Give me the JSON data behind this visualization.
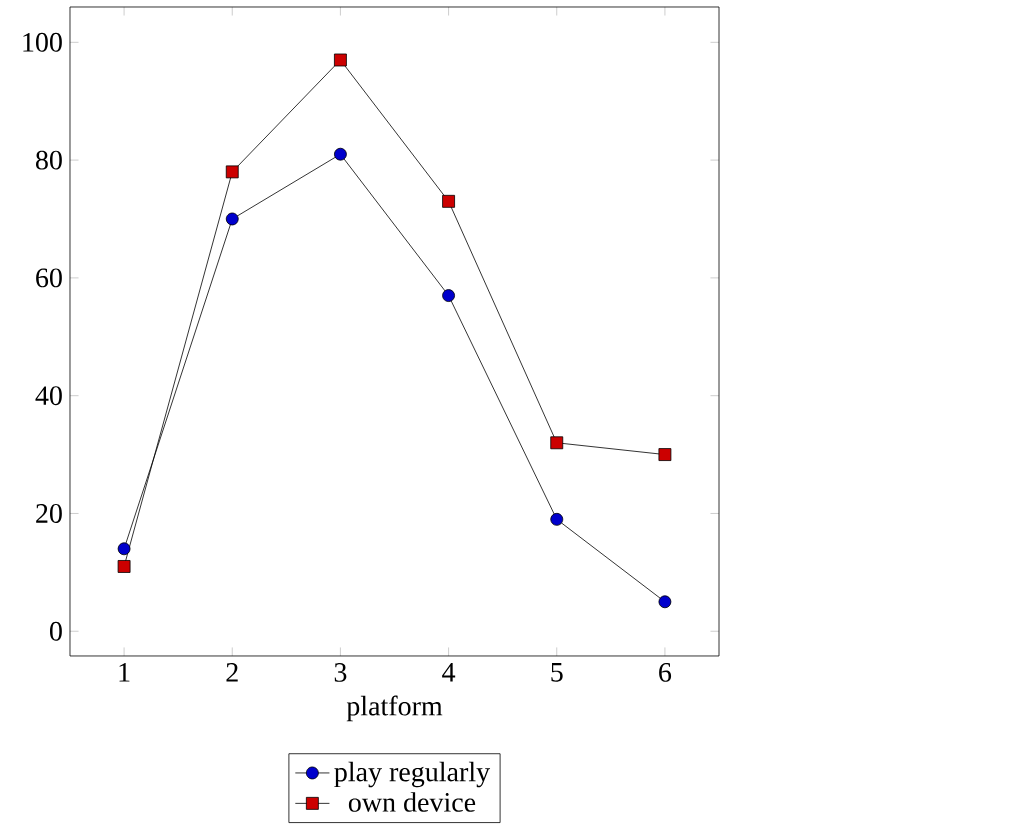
{
  "chart_data": {
    "type": "line",
    "xlabel": "platform",
    "x": [
      1,
      2,
      3,
      4,
      5,
      6
    ],
    "series": [
      {
        "name": "play regularly",
        "color": "#0000cc",
        "marker": "circle",
        "values": [
          14,
          70,
          81,
          57,
          19,
          5
        ]
      },
      {
        "name": "own device",
        "color": "#cc0000",
        "marker": "square",
        "values": [
          11,
          78,
          97,
          73,
          32,
          30
        ]
      }
    ],
    "xlim": [
      0.5,
      6.5
    ],
    "ylim": [
      -4.2,
      106
    ],
    "xticks": [
      1,
      2,
      3,
      4,
      5,
      6
    ],
    "yticks": [
      0,
      20,
      40,
      60,
      80,
      100
    ],
    "grid": false,
    "legend": "bottom",
    "line_style": "solid"
  }
}
